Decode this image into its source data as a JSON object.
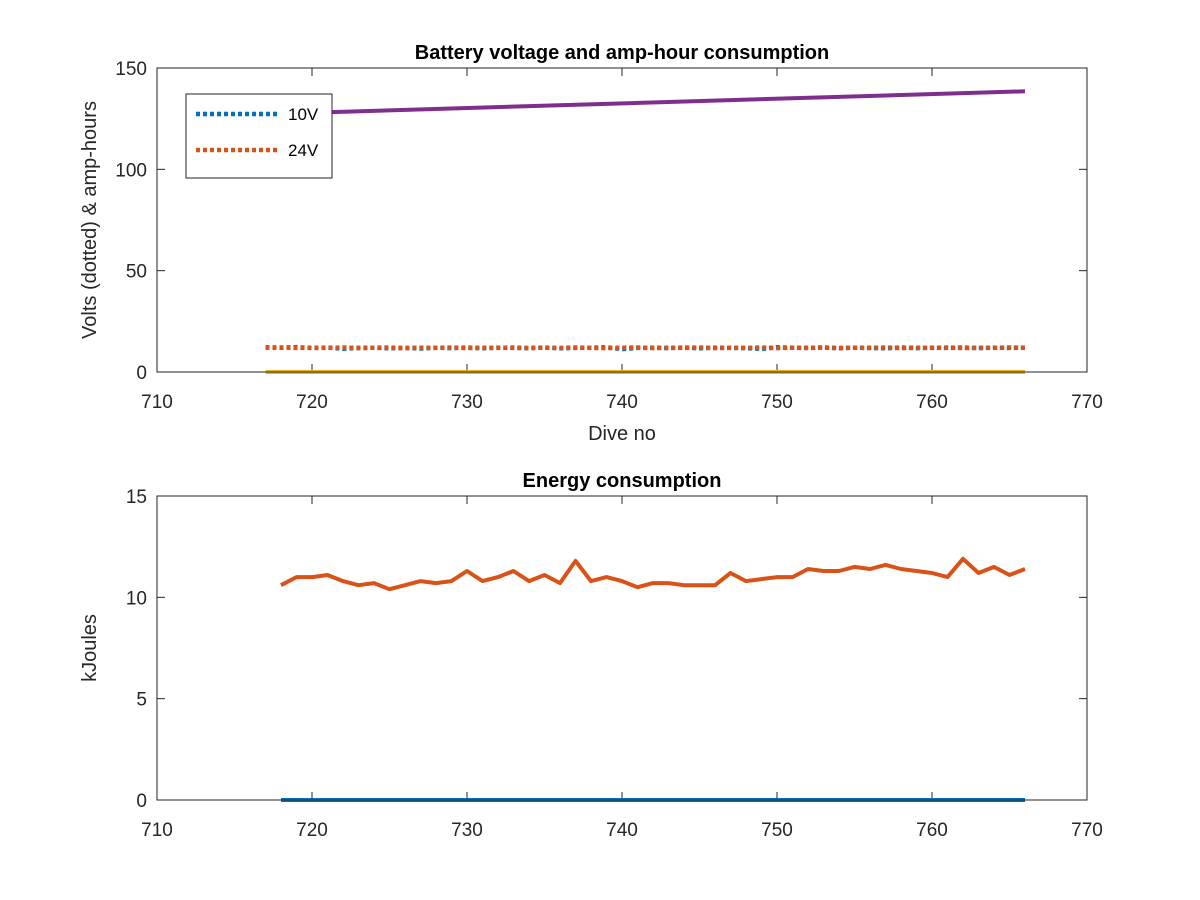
{
  "chart_data": [
    {
      "type": "line",
      "title": "Battery voltage and amp-hour consumption",
      "xlabel": "Dive no",
      "ylabel": "Volts (dotted) & amp-hours",
      "xlim": [
        710,
        770
      ],
      "ylim": [
        0,
        150
      ],
      "xticks": [
        "710",
        "720",
        "730",
        "740",
        "750",
        "760",
        "770"
      ],
      "yticks": [
        "0",
        "50",
        "100",
        "150"
      ],
      "grid": false,
      "legend_position": "top-left",
      "series": [
        {
          "name": "10V",
          "color": "#0072BD",
          "style": "dotted",
          "x": [
            717,
            718,
            719,
            720,
            721,
            722,
            723,
            724,
            725,
            726,
            727,
            728,
            729,
            730,
            731,
            732,
            733,
            734,
            735,
            736,
            737,
            738,
            739,
            740,
            741,
            742,
            743,
            744,
            745,
            746,
            747,
            748,
            749,
            750,
            751,
            752,
            753,
            754,
            755,
            756,
            757,
            758,
            759,
            760,
            761,
            762,
            763,
            764,
            765,
            766
          ],
          "y": [
            12.2,
            12.0,
            12.3,
            11.8,
            12.1,
            11.5,
            11.9,
            12.0,
            11.7,
            11.9,
            11.6,
            12.0,
            11.8,
            12.1,
            11.7,
            12.0,
            11.9,
            11.8,
            12.1,
            11.7,
            11.9,
            12.0,
            12.2,
            11.3,
            11.9,
            12.0,
            11.8,
            12.1,
            11.7,
            12.0,
            11.9,
            11.8,
            11.4,
            12.2,
            12.0,
            11.9,
            12.1,
            11.8,
            12.0,
            11.9,
            11.7,
            12.1,
            11.8,
            12.0,
            11.9,
            12.1,
            11.8,
            12.0,
            11.9,
            12.0
          ]
        },
        {
          "name": "24V",
          "color": "#D95319",
          "style": "dotted",
          "x": [
            717,
            718,
            719,
            720,
            721,
            722,
            723,
            724,
            725,
            726,
            727,
            728,
            729,
            730,
            731,
            732,
            733,
            734,
            735,
            736,
            737,
            738,
            739,
            740,
            741,
            742,
            743,
            744,
            745,
            746,
            747,
            748,
            749,
            750,
            751,
            752,
            753,
            754,
            755,
            756,
            757,
            758,
            759,
            760,
            761,
            762,
            763,
            764,
            765,
            766
          ],
          "y": [
            12.0,
            12.1,
            11.9,
            12.0,
            11.9,
            12.1,
            11.8,
            12.0,
            12.1,
            11.8,
            12.0,
            11.9,
            12.1,
            11.8,
            12.0,
            11.9,
            12.1,
            11.8,
            12.0,
            11.9,
            12.1,
            11.9,
            11.8,
            12.0,
            12.1,
            11.8,
            12.0,
            11.9,
            12.1,
            11.8,
            12.0,
            11.9,
            12.1,
            11.8,
            12.0,
            11.9,
            12.1,
            11.8,
            12.0,
            11.9,
            12.1,
            11.8,
            12.0,
            11.9,
            12.1,
            11.8,
            12.0,
            11.9,
            12.1,
            12.0
          ]
        },
        {
          "color": "#EDB120",
          "style": "solid",
          "x": [
            717,
            766
          ],
          "y": [
            0,
            0
          ]
        },
        {
          "color": "#7E2F8E",
          "style": "solid",
          "x": [
            718,
            766
          ],
          "y": [
            127.5,
            138.5
          ]
        }
      ]
    },
    {
      "type": "line",
      "title": "Energy consumption",
      "xlabel": "",
      "ylabel": "kJoules",
      "xlim": [
        710,
        770
      ],
      "ylim": [
        0,
        15
      ],
      "xticks": [
        "710",
        "720",
        "730",
        "740",
        "750",
        "760",
        "770"
      ],
      "yticks": [
        "0",
        "5",
        "10",
        "15"
      ],
      "grid": false,
      "series": [
        {
          "color": "#0072BD",
          "style": "solid",
          "x": [
            718,
            766
          ],
          "y": [
            0,
            0
          ]
        },
        {
          "color": "#D95319",
          "style": "solid",
          "x": [
            718,
            719,
            720,
            721,
            722,
            723,
            724,
            725,
            726,
            727,
            728,
            729,
            730,
            731,
            732,
            733,
            734,
            735,
            736,
            737,
            738,
            739,
            740,
            741,
            742,
            743,
            744,
            745,
            746,
            747,
            748,
            749,
            750,
            751,
            752,
            753,
            754,
            755,
            756,
            757,
            758,
            759,
            760,
            761,
            762,
            763,
            764,
            765,
            766
          ],
          "y": [
            10.6,
            11.0,
            11.0,
            11.1,
            10.8,
            10.6,
            10.7,
            10.4,
            10.6,
            10.8,
            10.7,
            10.8,
            11.3,
            10.8,
            11.0,
            11.3,
            10.8,
            11.1,
            10.7,
            11.8,
            10.8,
            11.0,
            10.8,
            10.5,
            10.7,
            10.7,
            10.6,
            10.6,
            10.6,
            11.2,
            10.8,
            10.9,
            11.0,
            11.0,
            11.4,
            11.3,
            11.3,
            11.5,
            11.4,
            11.6,
            11.4,
            11.3,
            11.2,
            11.0,
            11.9,
            11.2,
            11.5,
            11.1,
            11.4
          ]
        }
      ]
    }
  ]
}
